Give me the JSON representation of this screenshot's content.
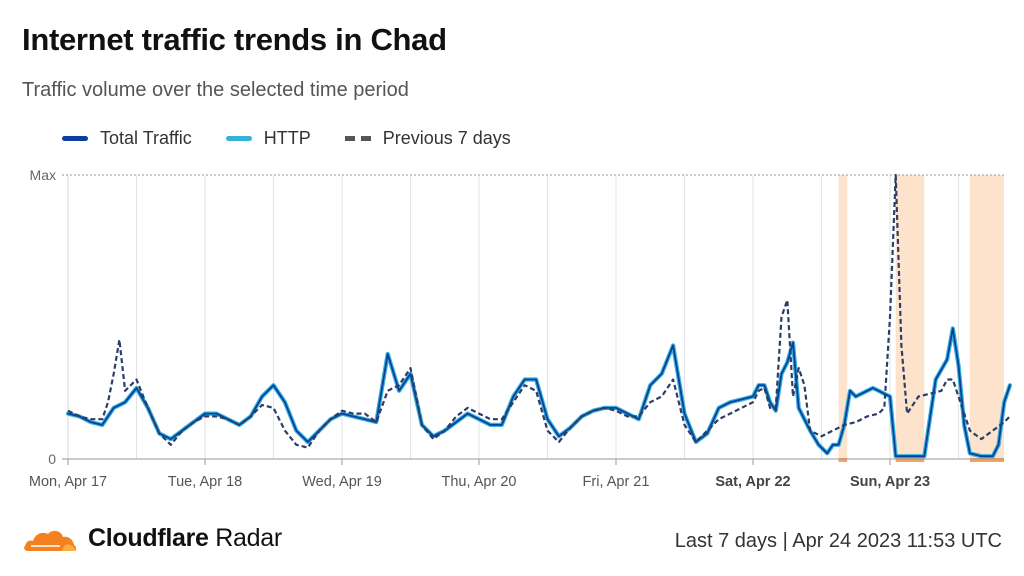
{
  "header": {
    "title": "Internet traffic trends in Chad",
    "subtitle": "Traffic volume over the selected time period"
  },
  "legend": [
    {
      "label": "Total Traffic",
      "color": "#0a3f9c",
      "style": "solid"
    },
    {
      "label": "HTTP",
      "color": "#35b1db",
      "style": "solid"
    },
    {
      "label": "Previous 7 days",
      "color": "#555555",
      "style": "dashed"
    }
  ],
  "footer": {
    "brand": "Cloudflare",
    "brand_suffix": "Radar",
    "range_text": "Last 7 days | Apr 24 2023 11:53 UTC"
  },
  "chart_data": {
    "type": "line",
    "title": "Internet traffic trends in Chad",
    "subtitle": "Traffic volume over the selected time period",
    "y_axis": {
      "ticks": [
        {
          "label": "0",
          "value": 0
        },
        {
          "label": "Max",
          "value": 1
        }
      ],
      "range": [
        0,
        1
      ]
    },
    "x_axis": {
      "unit": "hours since Mon, Apr 17 00:00",
      "range": [
        0,
        180
      ],
      "ticks": [
        {
          "label": "Mon, Apr 17",
          "x": 0,
          "bold": false
        },
        {
          "label": "Tue, Apr 18",
          "x": 24,
          "bold": false
        },
        {
          "label": "Wed, Apr 19",
          "x": 48,
          "bold": false
        },
        {
          "label": "Thu, Apr 20",
          "x": 72,
          "bold": false
        },
        {
          "label": "Fri, Apr 21",
          "x": 96,
          "bold": false
        },
        {
          "label": "Sat, Apr 22",
          "x": 120,
          "bold": true
        },
        {
          "label": "Sun, Apr 23",
          "x": 144,
          "bold": true
        }
      ]
    },
    "grid": true,
    "outage_periods": [
      [
        135,
        136.5
      ],
      [
        145,
        150
      ],
      [
        158,
        164
      ]
    ],
    "series": [
      {
        "name": "Total Traffic",
        "color": "#0a3f9c",
        "style": "solid",
        "points": [
          [
            0,
            0.16
          ],
          [
            2,
            0.15
          ],
          [
            4,
            0.13
          ],
          [
            6,
            0.12
          ],
          [
            8,
            0.18
          ],
          [
            10,
            0.2
          ],
          [
            12,
            0.25
          ],
          [
            14,
            0.18
          ],
          [
            16,
            0.09
          ],
          [
            18,
            0.07
          ],
          [
            20,
            0.1
          ],
          [
            22,
            0.13
          ],
          [
            24,
            0.16
          ],
          [
            26,
            0.16
          ],
          [
            28,
            0.14
          ],
          [
            30,
            0.12
          ],
          [
            32,
            0.15
          ],
          [
            34,
            0.22
          ],
          [
            36,
            0.26
          ],
          [
            38,
            0.2
          ],
          [
            40,
            0.1
          ],
          [
            42,
            0.06
          ],
          [
            44,
            0.1
          ],
          [
            46,
            0.14
          ],
          [
            48,
            0.16
          ],
          [
            50,
            0.15
          ],
          [
            52,
            0.14
          ],
          [
            54,
            0.13
          ],
          [
            56,
            0.37
          ],
          [
            58,
            0.24
          ],
          [
            60,
            0.3
          ],
          [
            62,
            0.12
          ],
          [
            64,
            0.08
          ],
          [
            66,
            0.1
          ],
          [
            68,
            0.13
          ],
          [
            70,
            0.16
          ],
          [
            72,
            0.14
          ],
          [
            74,
            0.12
          ],
          [
            76,
            0.12
          ],
          [
            78,
            0.22
          ],
          [
            80,
            0.28
          ],
          [
            82,
            0.28
          ],
          [
            84,
            0.14
          ],
          [
            86,
            0.08
          ],
          [
            88,
            0.11
          ],
          [
            90,
            0.15
          ],
          [
            92,
            0.17
          ],
          [
            94,
            0.18
          ],
          [
            96,
            0.18
          ],
          [
            98,
            0.16
          ],
          [
            100,
            0.14
          ],
          [
            102,
            0.26
          ],
          [
            104,
            0.3
          ],
          [
            106,
            0.4
          ],
          [
            108,
            0.16
          ],
          [
            110,
            0.06
          ],
          [
            112,
            0.09
          ],
          [
            114,
            0.18
          ],
          [
            116,
            0.2
          ],
          [
            118,
            0.21
          ],
          [
            120,
            0.22
          ],
          [
            121,
            0.26
          ],
          [
            122,
            0.26
          ],
          [
            123,
            0.2
          ],
          [
            124,
            0.17
          ],
          [
            125,
            0.3
          ],
          [
            126,
            0.34
          ],
          [
            127,
            0.41
          ],
          [
            128,
            0.18
          ],
          [
            130,
            0.1
          ],
          [
            131.5,
            0.05
          ],
          [
            133,
            0.02
          ],
          [
            134,
            0.05
          ],
          [
            135,
            0.05
          ],
          [
            136,
            0.12
          ],
          [
            137,
            0.24
          ],
          [
            138,
            0.22
          ],
          [
            140,
            0.24
          ],
          [
            141,
            0.25
          ],
          [
            142,
            0.24
          ],
          [
            143,
            0.23
          ],
          [
            144,
            0.22
          ],
          [
            145,
            0.01
          ],
          [
            146,
            0.01
          ],
          [
            148,
            0.01
          ],
          [
            150,
            0.01
          ],
          [
            152,
            0.28
          ],
          [
            154,
            0.35
          ],
          [
            155,
            0.46
          ],
          [
            156,
            0.33
          ],
          [
            157,
            0.12
          ],
          [
            158,
            0.02
          ],
          [
            160,
            0.01
          ],
          [
            162,
            0.01
          ],
          [
            163,
            0.05
          ],
          [
            164,
            0.2
          ],
          [
            165,
            0.26
          ]
        ]
      },
      {
        "name": "HTTP",
        "color": "#35b1db",
        "style": "solid",
        "points": [
          [
            0,
            0.16
          ],
          [
            2,
            0.15
          ],
          [
            4,
            0.13
          ],
          [
            6,
            0.12
          ],
          [
            8,
            0.18
          ],
          [
            10,
            0.2
          ],
          [
            12,
            0.25
          ],
          [
            14,
            0.18
          ],
          [
            16,
            0.09
          ],
          [
            18,
            0.07
          ],
          [
            20,
            0.1
          ],
          [
            22,
            0.13
          ],
          [
            24,
            0.16
          ],
          [
            26,
            0.16
          ],
          [
            28,
            0.14
          ],
          [
            30,
            0.12
          ],
          [
            32,
            0.15
          ],
          [
            34,
            0.22
          ],
          [
            36,
            0.26
          ],
          [
            38,
            0.2
          ],
          [
            40,
            0.1
          ],
          [
            42,
            0.06
          ],
          [
            44,
            0.1
          ],
          [
            46,
            0.14
          ],
          [
            48,
            0.16
          ],
          [
            50,
            0.15
          ],
          [
            52,
            0.14
          ],
          [
            54,
            0.13
          ],
          [
            56,
            0.37
          ],
          [
            58,
            0.24
          ],
          [
            60,
            0.3
          ],
          [
            62,
            0.12
          ],
          [
            64,
            0.08
          ],
          [
            66,
            0.1
          ],
          [
            68,
            0.13
          ],
          [
            70,
            0.16
          ],
          [
            72,
            0.14
          ],
          [
            74,
            0.12
          ],
          [
            76,
            0.12
          ],
          [
            78,
            0.22
          ],
          [
            80,
            0.28
          ],
          [
            82,
            0.28
          ],
          [
            84,
            0.14
          ],
          [
            86,
            0.08
          ],
          [
            88,
            0.11
          ],
          [
            90,
            0.15
          ],
          [
            92,
            0.17
          ],
          [
            94,
            0.18
          ],
          [
            96,
            0.18
          ],
          [
            98,
            0.16
          ],
          [
            100,
            0.14
          ],
          [
            102,
            0.26
          ],
          [
            104,
            0.3
          ],
          [
            106,
            0.4
          ],
          [
            108,
            0.16
          ],
          [
            110,
            0.06
          ],
          [
            112,
            0.09
          ],
          [
            114,
            0.18
          ],
          [
            116,
            0.2
          ],
          [
            118,
            0.21
          ],
          [
            120,
            0.22
          ],
          [
            121,
            0.26
          ],
          [
            122,
            0.26
          ],
          [
            123,
            0.2
          ],
          [
            124,
            0.17
          ],
          [
            125,
            0.3
          ],
          [
            126,
            0.34
          ],
          [
            127,
            0.41
          ],
          [
            128,
            0.18
          ],
          [
            130,
            0.1
          ],
          [
            131.5,
            0.05
          ],
          [
            133,
            0.02
          ],
          [
            134,
            0.05
          ],
          [
            135,
            0.05
          ],
          [
            136,
            0.12
          ],
          [
            137,
            0.24
          ],
          [
            138,
            0.22
          ],
          [
            140,
            0.24
          ],
          [
            141,
            0.25
          ],
          [
            142,
            0.24
          ],
          [
            143,
            0.23
          ],
          [
            144,
            0.22
          ],
          [
            145,
            0.01
          ],
          [
            146,
            0.01
          ],
          [
            148,
            0.01
          ],
          [
            150,
            0.01
          ],
          [
            152,
            0.28
          ],
          [
            154,
            0.35
          ],
          [
            155,
            0.46
          ],
          [
            156,
            0.33
          ],
          [
            157,
            0.12
          ],
          [
            158,
            0.02
          ],
          [
            160,
            0.01
          ],
          [
            162,
            0.01
          ],
          [
            163,
            0.05
          ],
          [
            164,
            0.2
          ],
          [
            165,
            0.26
          ]
        ]
      },
      {
        "name": "Previous 7 days",
        "color": "#2c3e66",
        "style": "dashed",
        "points": [
          [
            0,
            0.17
          ],
          [
            2,
            0.15
          ],
          [
            4,
            0.14
          ],
          [
            6,
            0.14
          ],
          [
            7,
            0.2
          ],
          [
            8,
            0.3
          ],
          [
            9,
            0.42
          ],
          [
            10,
            0.24
          ],
          [
            12,
            0.28
          ],
          [
            14,
            0.18
          ],
          [
            16,
            0.09
          ],
          [
            18,
            0.05
          ],
          [
            20,
            0.1
          ],
          [
            22,
            0.13
          ],
          [
            24,
            0.15
          ],
          [
            26,
            0.15
          ],
          [
            28,
            0.14
          ],
          [
            30,
            0.12
          ],
          [
            32,
            0.15
          ],
          [
            34,
            0.19
          ],
          [
            36,
            0.18
          ],
          [
            38,
            0.1
          ],
          [
            40,
            0.05
          ],
          [
            42,
            0.04
          ],
          [
            44,
            0.1
          ],
          [
            46,
            0.14
          ],
          [
            48,
            0.17
          ],
          [
            50,
            0.16
          ],
          [
            52,
            0.16
          ],
          [
            54,
            0.13
          ],
          [
            56,
            0.24
          ],
          [
            58,
            0.26
          ],
          [
            60,
            0.32
          ],
          [
            62,
            0.12
          ],
          [
            64,
            0.07
          ],
          [
            66,
            0.1
          ],
          [
            68,
            0.15
          ],
          [
            70,
            0.18
          ],
          [
            72,
            0.16
          ],
          [
            74,
            0.14
          ],
          [
            76,
            0.14
          ],
          [
            78,
            0.2
          ],
          [
            80,
            0.26
          ],
          [
            82,
            0.24
          ],
          [
            84,
            0.1
          ],
          [
            86,
            0.06
          ],
          [
            88,
            0.11
          ],
          [
            90,
            0.15
          ],
          [
            92,
            0.17
          ],
          [
            94,
            0.18
          ],
          [
            96,
            0.17
          ],
          [
            98,
            0.15
          ],
          [
            100,
            0.15
          ],
          [
            102,
            0.2
          ],
          [
            104,
            0.22
          ],
          [
            106,
            0.28
          ],
          [
            108,
            0.12
          ],
          [
            110,
            0.06
          ],
          [
            112,
            0.1
          ],
          [
            114,
            0.14
          ],
          [
            116,
            0.16
          ],
          [
            118,
            0.18
          ],
          [
            120,
            0.2
          ],
          [
            121,
            0.24
          ],
          [
            122,
            0.25
          ],
          [
            123,
            0.18
          ],
          [
            124,
            0.18
          ],
          [
            125,
            0.5
          ],
          [
            126,
            0.56
          ],
          [
            127,
            0.22
          ],
          [
            128,
            0.32
          ],
          [
            129,
            0.26
          ],
          [
            130,
            0.1
          ],
          [
            132,
            0.08
          ],
          [
            134,
            0.1
          ],
          [
            136,
            0.12
          ],
          [
            138,
            0.13
          ],
          [
            140,
            0.15
          ],
          [
            142,
            0.16
          ],
          [
            143,
            0.18
          ],
          [
            144,
            0.5
          ],
          [
            145,
            1.0
          ],
          [
            146,
            0.4
          ],
          [
            147,
            0.16
          ],
          [
            149,
            0.22
          ],
          [
            151,
            0.23
          ],
          [
            153,
            0.24
          ],
          [
            154,
            0.28
          ],
          [
            155,
            0.28
          ],
          [
            156,
            0.22
          ],
          [
            158,
            0.1
          ],
          [
            160,
            0.07
          ],
          [
            162,
            0.1
          ],
          [
            164,
            0.13
          ],
          [
            165,
            0.15
          ]
        ]
      }
    ]
  }
}
